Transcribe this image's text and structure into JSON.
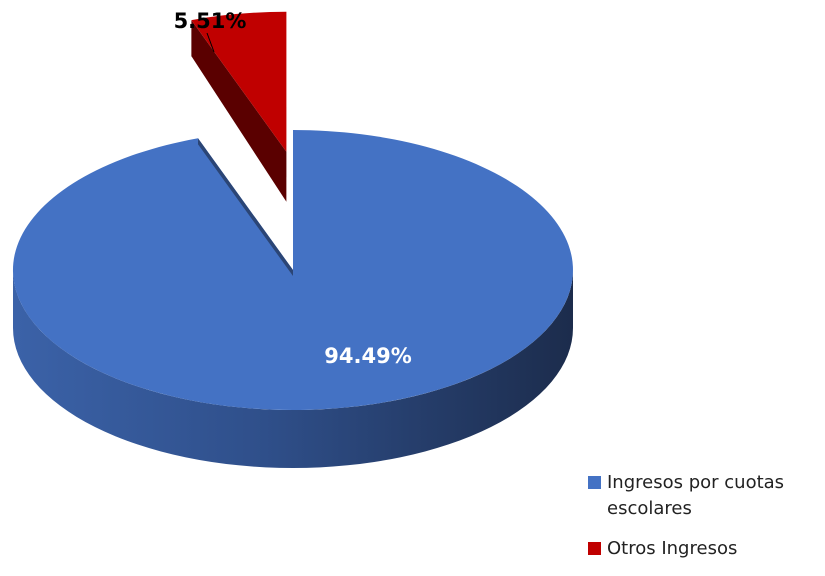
{
  "chart_data": {
    "type": "pie",
    "title": "",
    "series": [
      {
        "values": [
          94.49,
          5.51
        ],
        "labels": [
          "94.49%",
          "5.51%"
        ]
      }
    ],
    "categories": [
      "Ingresos por cuotas escolares",
      "Otros Ingresos"
    ],
    "colors": [
      "#4472c4",
      "#c00000"
    ],
    "legend_position": "bottom-right",
    "exploded_slice": "Otros Ingresos",
    "style": "3d"
  }
}
